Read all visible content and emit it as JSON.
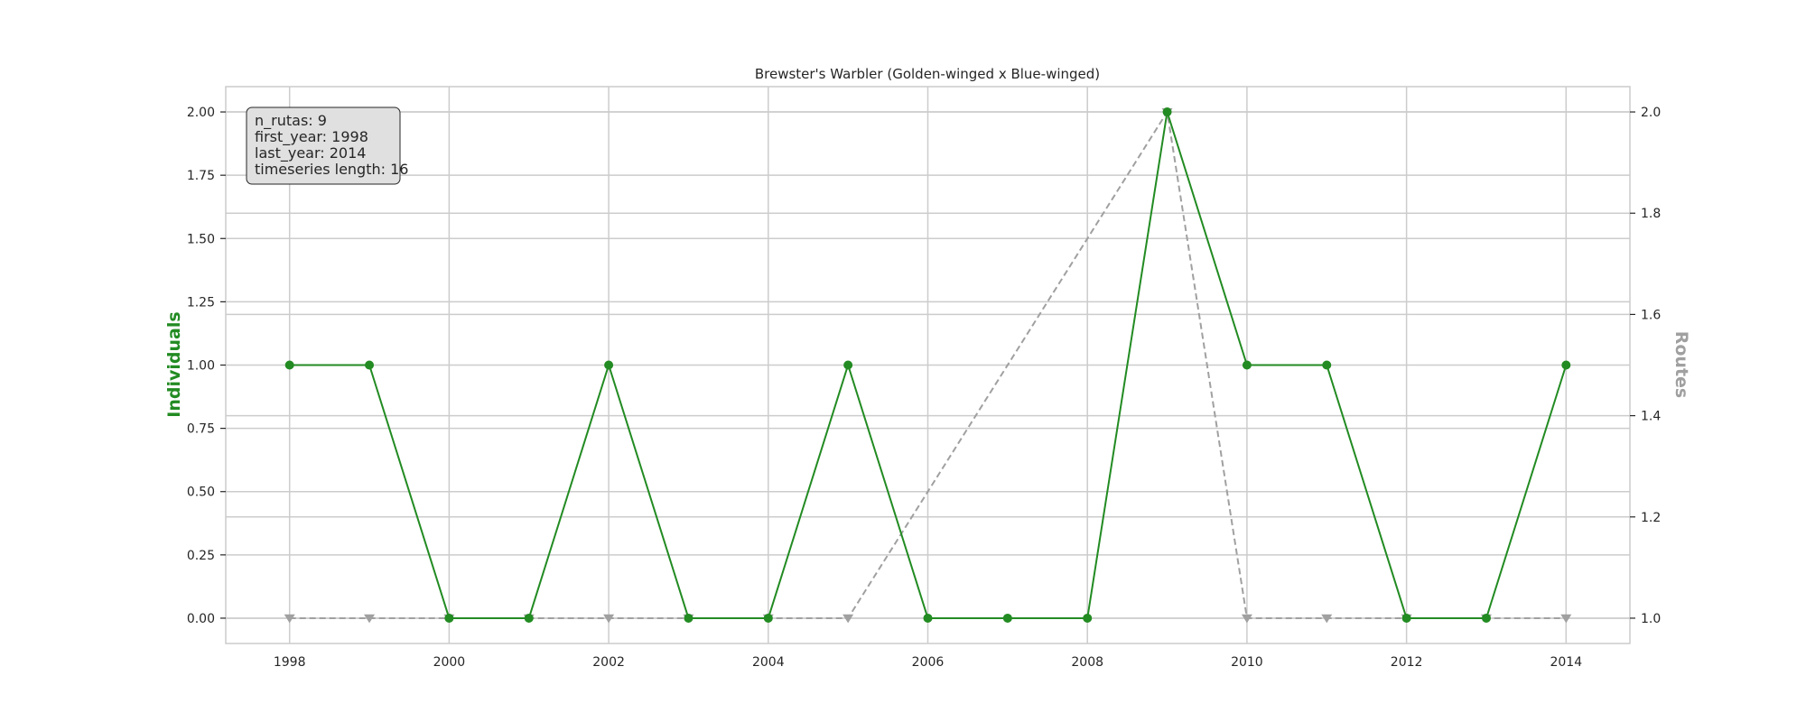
{
  "chart_data": {
    "type": "line",
    "title": "Brewster's Warbler (Golden-winged x Blue-winged)",
    "xlabel": "",
    "ylabel_left": "Individuals",
    "ylabel_right": "Routes",
    "x": [
      1998,
      1999,
      2000,
      2001,
      2002,
      2003,
      2004,
      2005,
      2006,
      2007,
      2008,
      2009,
      2010,
      2011,
      2012,
      2013,
      2014
    ],
    "x_ticks": [
      "1998",
      "2000",
      "2002",
      "2004",
      "2006",
      "2008",
      "2010",
      "2012",
      "2014"
    ],
    "x_tick_values": [
      1998,
      2000,
      2002,
      2004,
      2006,
      2008,
      2010,
      2012,
      2014
    ],
    "xlim": [
      1997.2,
      2014.8
    ],
    "y_left_ticks": [
      "0.00",
      "0.25",
      "0.50",
      "0.75",
      "1.00",
      "1.25",
      "1.50",
      "1.75",
      "2.00"
    ],
    "y_left_tick_values": [
      0,
      0.25,
      0.5,
      0.75,
      1.0,
      1.25,
      1.5,
      1.75,
      2.0
    ],
    "ylim_left": [
      -0.1,
      2.1
    ],
    "y_right_ticks": [
      "1.0",
      "1.2",
      "1.4",
      "1.6",
      "1.8",
      "2.0"
    ],
    "y_right_tick_values": [
      1.0,
      1.2,
      1.4,
      1.6,
      1.8,
      2.0
    ],
    "ylim_right": [
      0.95,
      2.05
    ],
    "grid": true,
    "series": [
      {
        "axis": "left",
        "color": "#228B22",
        "marker": "circle",
        "linestyle": "solid",
        "points": [
          {
            "x": 1998,
            "y": 1
          },
          {
            "x": 1999,
            "y": 1
          },
          {
            "x": 2000,
            "y": 0
          },
          {
            "x": 2001,
            "y": 0
          },
          {
            "x": 2002,
            "y": 1
          },
          {
            "x": 2003,
            "y": 0
          },
          {
            "x": 2004,
            "y": 0
          },
          {
            "x": 2005,
            "y": 1
          },
          {
            "x": 2006,
            "y": 0
          },
          {
            "x": 2007,
            "y": 0
          },
          {
            "x": 2008,
            "y": 0
          },
          {
            "x": 2009,
            "y": 2
          },
          {
            "x": 2010,
            "y": 1
          },
          {
            "x": 2011,
            "y": 1
          },
          {
            "x": 2012,
            "y": 0
          },
          {
            "x": 2013,
            "y": 0
          },
          {
            "x": 2014,
            "y": 1
          }
        ]
      },
      {
        "axis": "right",
        "color": "#A0A0A0",
        "marker": "triangle-down",
        "linestyle": "dashed",
        "points": [
          {
            "x": 1998,
            "y": 1
          },
          {
            "x": 1999,
            "y": 1
          },
          {
            "x": 2000,
            "y": 1
          },
          {
            "x": 2001,
            "y": 1
          },
          {
            "x": 2002,
            "y": 1
          },
          {
            "x": 2003,
            "y": 1
          },
          {
            "x": 2004,
            "y": 1
          },
          {
            "x": 2005,
            "y": 1
          },
          {
            "x": 2009,
            "y": 2
          },
          {
            "x": 2010,
            "y": 1
          },
          {
            "x": 2011,
            "y": 1
          },
          {
            "x": 2012,
            "y": 1
          },
          {
            "x": 2013,
            "y": 1
          },
          {
            "x": 2014,
            "y": 1
          }
        ]
      }
    ],
    "info_box": {
      "lines": [
        "n_rutas: 9",
        "first_year: 1998",
        "last_year: 2014",
        "timeseries length: 16"
      ],
      "placement": "top-left"
    }
  }
}
